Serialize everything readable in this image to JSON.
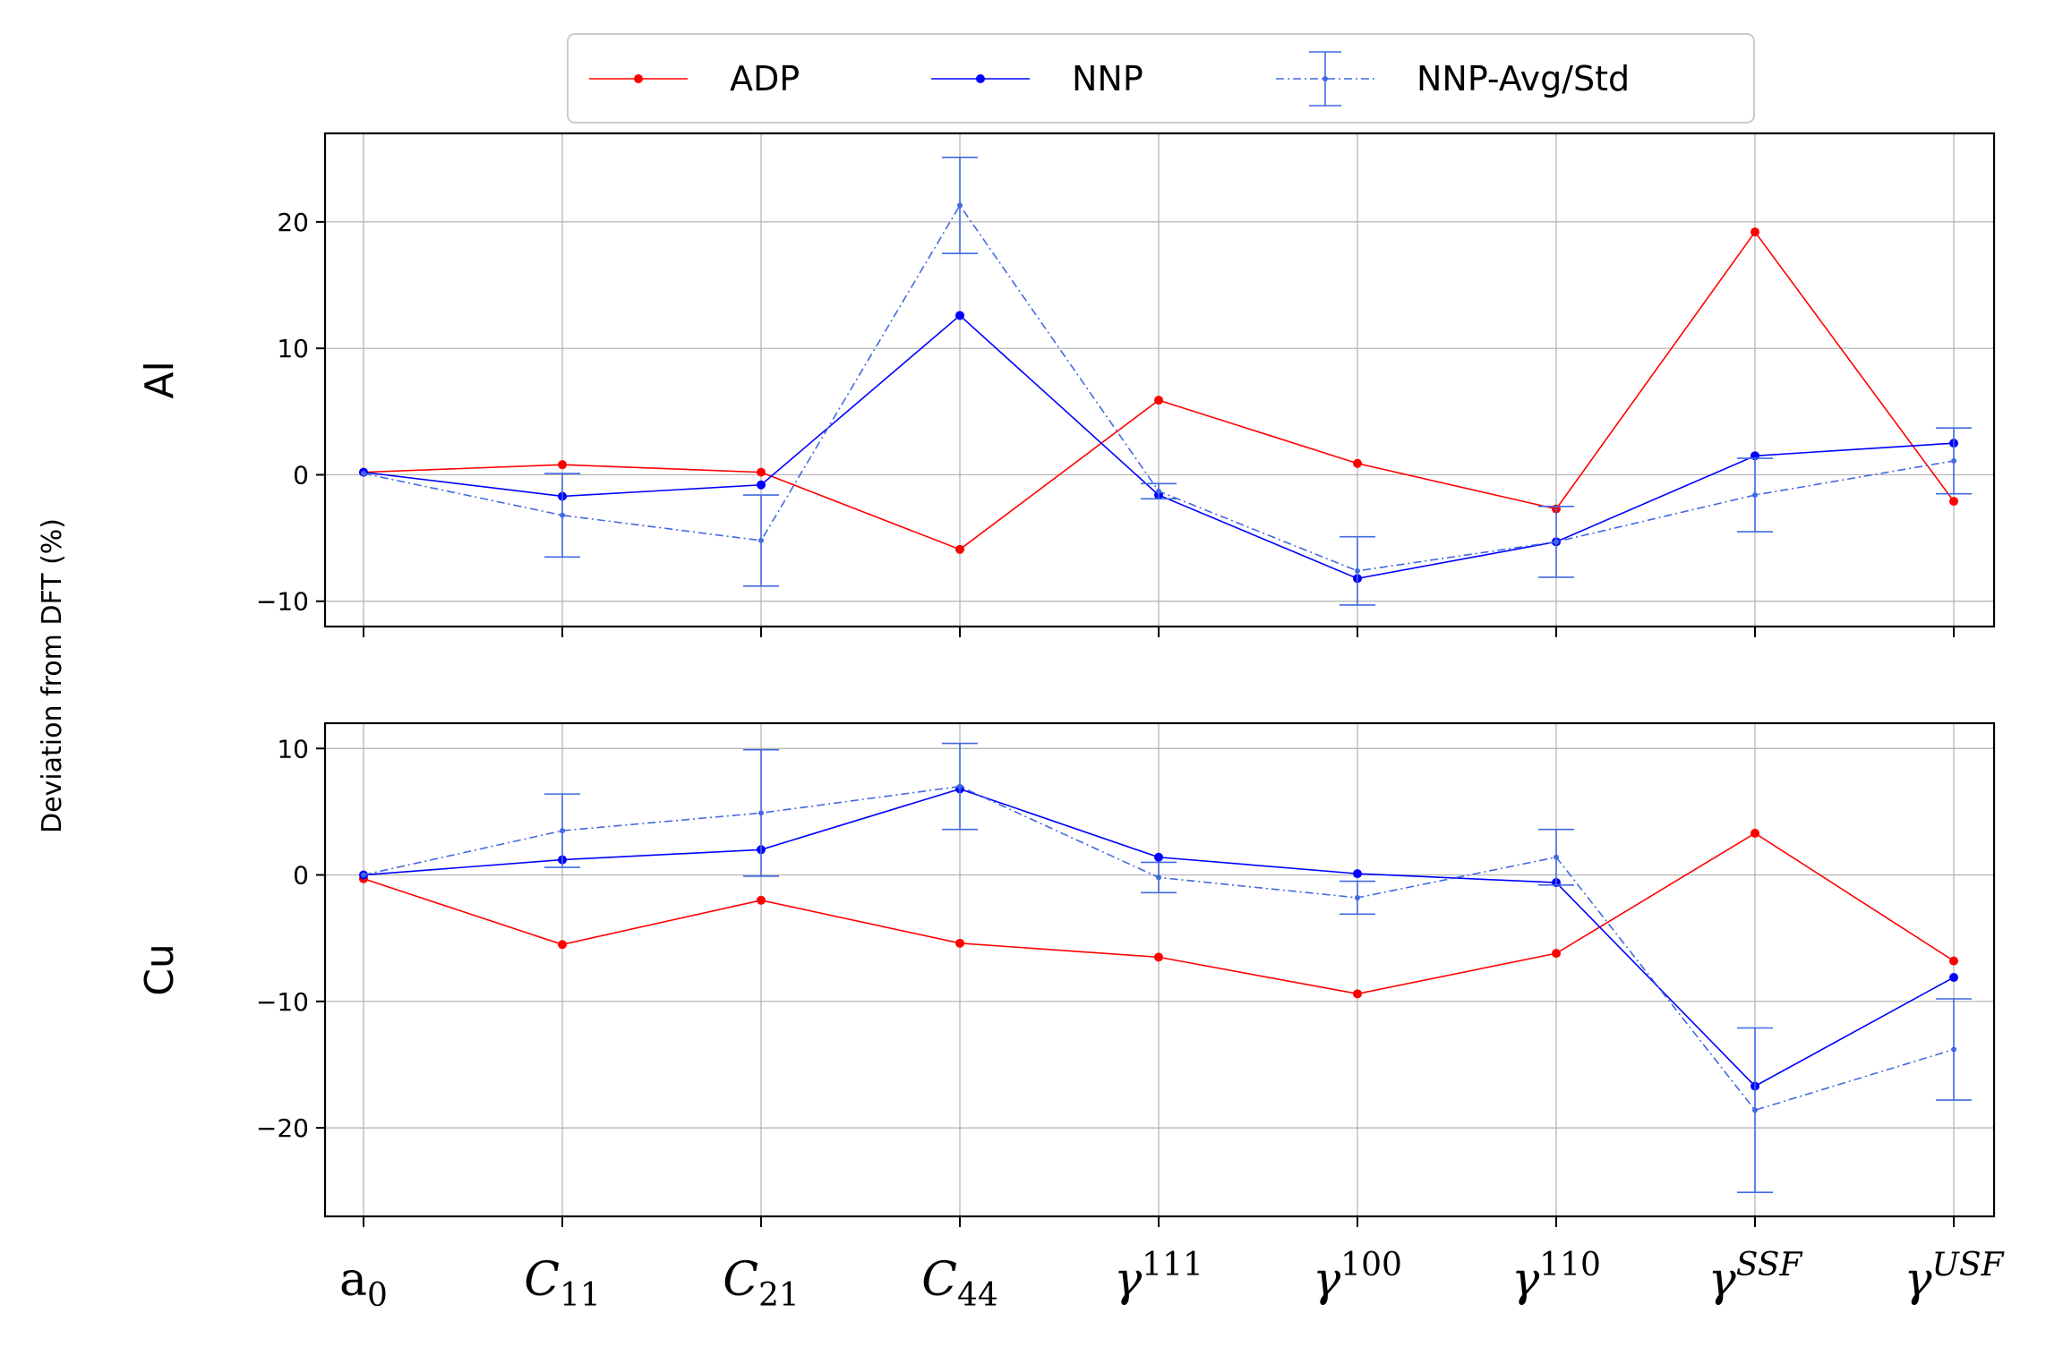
{
  "chart_data": {
    "type": "line",
    "ylabel": "Deviation from DFT (%)",
    "grid": true,
    "legend_position": "top-center",
    "categories": [
      {
        "base": "a",
        "sub": "0",
        "sup": "",
        "italic": false
      },
      {
        "base": "C",
        "sub": "11",
        "sup": "",
        "italic": true
      },
      {
        "base": "C",
        "sub": "21",
        "sup": "",
        "italic": true
      },
      {
        "base": "C",
        "sub": "44",
        "sup": "",
        "italic": true
      },
      {
        "base": "γ",
        "sub": "",
        "sup": "111",
        "italic": true
      },
      {
        "base": "γ",
        "sub": "",
        "sup": "100",
        "italic": true
      },
      {
        "base": "γ",
        "sub": "",
        "sup": "110",
        "italic": true
      },
      {
        "base": "γ",
        "sub": "",
        "sup": "SSF",
        "italic": true
      },
      {
        "base": "γ",
        "sub": "",
        "sup": "USF",
        "italic": true
      }
    ],
    "legend": [
      {
        "name": "ADP",
        "color": "#ff0000",
        "style": "solid"
      },
      {
        "name": "NNP",
        "color": "#0000ff",
        "style": "solid"
      },
      {
        "name": "NNP-Avg/Std",
        "color": "#4169e1",
        "style": "dashdot"
      }
    ],
    "panels": [
      {
        "label": "Al",
        "ylim": [
          -12,
          27
        ],
        "yticks": [
          -10,
          0,
          10,
          20
        ],
        "ytick_labels": [
          "−10",
          "0",
          "10",
          "20"
        ],
        "series": [
          {
            "name": "ADP",
            "color": "#ff0000",
            "values": [
              0.2,
              0.8,
              0.2,
              -5.9,
              5.9,
              0.9,
              -2.7,
              19.2,
              -2.1
            ]
          },
          {
            "name": "NNP",
            "color": "#0000ff",
            "values": [
              0.2,
              -1.7,
              -0.8,
              12.6,
              -1.6,
              -8.2,
              -5.3,
              1.5,
              2.5
            ]
          },
          {
            "name": "NNP-Avg/Std",
            "color": "#4169e1",
            "values": [
              0.1,
              -3.2,
              -5.2,
              21.3,
              -1.3,
              -7.6,
              -5.3,
              -1.6,
              1.1
            ],
            "errors": [
              0.0,
              3.3,
              3.6,
              3.8,
              0.6,
              2.7,
              2.8,
              2.9,
              2.6
            ]
          }
        ]
      },
      {
        "label": "Cu",
        "ylim": [
          -27,
          12
        ],
        "yticks": [
          -20,
          -10,
          0,
          10
        ],
        "ytick_labels": [
          "−20",
          "−10",
          "0",
          "10"
        ],
        "series": [
          {
            "name": "ADP",
            "color": "#ff0000",
            "values": [
              -0.3,
              -5.5,
              -2.0,
              -5.4,
              -6.5,
              -9.4,
              -6.2,
              3.3,
              -6.8
            ]
          },
          {
            "name": "NNP",
            "color": "#0000ff",
            "values": [
              0.0,
              1.2,
              2.0,
              6.8,
              1.4,
              0.1,
              -0.6,
              -16.7,
              -8.1
            ]
          },
          {
            "name": "NNP-Avg/Std",
            "color": "#4169e1",
            "values": [
              0.0,
              3.5,
              4.9,
              7.0,
              -0.2,
              -1.8,
              1.4,
              -18.6,
              -13.8
            ],
            "errors": [
              0.0,
              2.9,
              5.0,
              3.4,
              1.2,
              1.3,
              2.2,
              6.5,
              4.0
            ]
          }
        ]
      }
    ]
  }
}
